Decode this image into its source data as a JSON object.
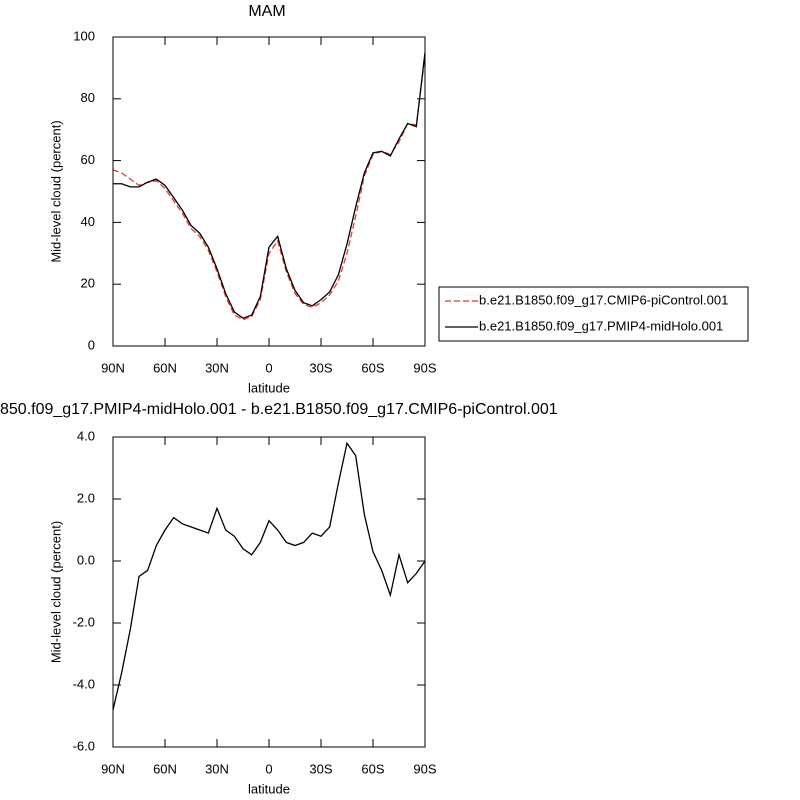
{
  "chart_data": [
    {
      "type": "line",
      "title": "MAM",
      "xlabel": "latitude",
      "ylabel": "Mid-level cloud (percent)",
      "x": [
        90,
        85,
        80,
        75,
        70,
        65,
        60,
        55,
        50,
        45,
        40,
        35,
        30,
        25,
        20,
        15,
        10,
        5,
        0,
        -5,
        -10,
        -15,
        -20,
        -25,
        -30,
        -35,
        -40,
        -45,
        -50,
        -55,
        -60,
        -65,
        -70,
        -75,
        -80,
        -85,
        -90
      ],
      "series": [
        {
          "name": "b.e21.B1850.f09_g17.CMIP6-piControl.001",
          "color": "#e8382f",
          "line_style": "dashed",
          "values": [
            57,
            56,
            54,
            52,
            53,
            53.5,
            51,
            47,
            43,
            38,
            35.5,
            31,
            24,
            16,
            10,
            8.5,
            9.5,
            15,
            30,
            34,
            24,
            17,
            13.5,
            12.5,
            14,
            16.5,
            21,
            30,
            42,
            55,
            62,
            63,
            62,
            66,
            72,
            71.5,
            94
          ]
        },
        {
          "name": "b.e21.B1850.f09_g17.PMIP4-midHolo.001",
          "color": "#000000",
          "line_style": "solid",
          "values": [
            52.5,
            52.5,
            51.5,
            51.5,
            53,
            54,
            52,
            48,
            44,
            39,
            36.5,
            32,
            25,
            17,
            11,
            9,
            10,
            16,
            32,
            35.5,
            25,
            18,
            14,
            13,
            15,
            17.5,
            23,
            33,
            45,
            56,
            62.5,
            63,
            61.5,
            67,
            72,
            71,
            95
          ]
        }
      ],
      "xlim": [
        90,
        -90
      ],
      "xticks": [
        {
          "value": 90,
          "label": "90N"
        },
        {
          "value": 60,
          "label": "60N"
        },
        {
          "value": 30,
          "label": "30N"
        },
        0,
        {
          "value": -30,
          "label": "30S"
        },
        {
          "value": -60,
          "label": "60S"
        },
        {
          "value": -90,
          "label": "90S"
        }
      ],
      "ylim": [
        0,
        100
      ],
      "yticks": [
        0,
        20,
        40,
        60,
        80,
        100
      ],
      "legend": "right"
    },
    {
      "type": "line",
      "title": "850.f09_g17.PMIP4-midHolo.001 - b.e21.B1850.f09_g17.CMIP6-piControl.001",
      "xlabel": "latitude",
      "ylabel": "Mid-level cloud (percent)",
      "x": [
        90,
        85,
        80,
        75,
        70,
        65,
        60,
        55,
        50,
        45,
        40,
        35,
        30,
        25,
        20,
        15,
        10,
        5,
        0,
        -5,
        -10,
        -15,
        -20,
        -25,
        -30,
        -35,
        -40,
        -45,
        -50,
        -55,
        -60,
        -65,
        -70,
        -75,
        -80,
        -85,
        -90
      ],
      "series": [
        {
          "color": "#000000",
          "values": [
            -4.8,
            -3.6,
            -2.2,
            -0.5,
            -0.3,
            0.5,
            1.0,
            1.4,
            1.2,
            1.1,
            1.0,
            0.9,
            1.7,
            1.0,
            0.8,
            0.4,
            0.2,
            0.6,
            1.3,
            1.0,
            0.6,
            0.5,
            0.6,
            0.9,
            0.8,
            1.1,
            2.5,
            3.8,
            3.4,
            1.5,
            0.3,
            -0.3,
            -1.1,
            0.2,
            -0.7,
            -0.4,
            0.0
          ]
        }
      ],
      "xlim": [
        90,
        -90
      ],
      "xticks": [
        {
          "value": 90,
          "label": "90N"
        },
        {
          "value": 60,
          "label": "60N"
        },
        {
          "value": 30,
          "label": "30N"
        },
        0,
        {
          "value": -30,
          "label": "30S"
        },
        {
          "value": -60,
          "label": "60S"
        },
        {
          "value": -90,
          "label": "90S"
        }
      ],
      "ylim": [
        -6,
        4
      ],
      "yticks": [
        {
          "value": -6,
          "label": "-6.0"
        },
        {
          "value": -4,
          "label": "-4.0"
        },
        {
          "value": -2,
          "label": "-2.0"
        },
        {
          "value": 0,
          "label": "0.0"
        },
        {
          "value": 2,
          "label": "2.0"
        },
        {
          "value": 4,
          "label": "4.0"
        }
      ]
    }
  ]
}
